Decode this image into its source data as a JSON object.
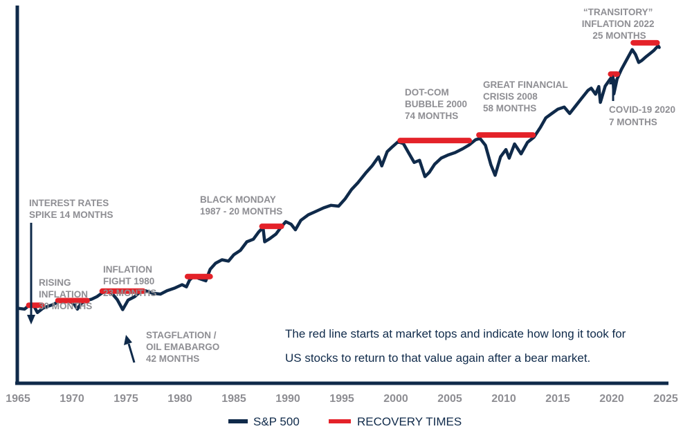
{
  "chart_data": {
    "type": "line",
    "title": "",
    "xlabel": "",
    "ylabel": "",
    "xlim": [
      1965,
      2025
    ],
    "y_scale": "index (log-like), unlabeled",
    "ylim": [
      0,
      100
    ],
    "grid": false,
    "x_ticks": [
      "1965",
      "1970",
      "1975",
      "1980",
      "1985",
      "1990",
      "1995",
      "2000",
      "2005",
      "2010",
      "2015",
      "2020",
      "2025"
    ],
    "legend": {
      "placement": "bottom-center",
      "entries": [
        {
          "label": "S&P 500",
          "color": "#0f2a4a"
        },
        {
          "label": "RECOVERY TIMES",
          "color": "#e42229"
        }
      ]
    },
    "series": [
      {
        "name": "S&P 500",
        "color": "#0f2a4a",
        "points": [
          [
            1965.0,
            14.0
          ],
          [
            1965.6,
            13.6
          ],
          [
            1966.0,
            15.2
          ],
          [
            1966.5,
            14.8
          ],
          [
            1966.8,
            12.0
          ],
          [
            1967.3,
            14.0
          ],
          [
            1967.7,
            14.8
          ],
          [
            1968.3,
            15.8
          ],
          [
            1968.8,
            17.4
          ],
          [
            1969.3,
            17.8
          ],
          [
            1969.8,
            17.2
          ],
          [
            1970.2,
            16.0
          ],
          [
            1970.5,
            13.6
          ],
          [
            1970.8,
            16.0
          ],
          [
            1971.3,
            17.6
          ],
          [
            1971.8,
            18.2
          ],
          [
            1972.3,
            19.4
          ],
          [
            1972.8,
            21.2
          ],
          [
            1973.3,
            22.2
          ],
          [
            1973.7,
            21.0
          ],
          [
            1974.2,
            18.0
          ],
          [
            1974.7,
            13.4
          ],
          [
            1975.2,
            17.8
          ],
          [
            1975.8,
            19.4
          ],
          [
            1976.3,
            21.6
          ],
          [
            1976.8,
            22.2
          ],
          [
            1977.5,
            21.0
          ],
          [
            1978.2,
            20.6
          ],
          [
            1978.8,
            22.2
          ],
          [
            1979.5,
            23.4
          ],
          [
            1980.2,
            25.0
          ],
          [
            1980.6,
            24.0
          ],
          [
            1980.9,
            27.2
          ],
          [
            1981.3,
            29.0
          ],
          [
            1981.8,
            27.8
          ],
          [
            1982.4,
            26.8
          ],
          [
            1982.8,
            32.2
          ],
          [
            1983.3,
            35.0
          ],
          [
            1983.9,
            36.6
          ],
          [
            1984.5,
            36.0
          ],
          [
            1985.0,
            39.0
          ],
          [
            1985.6,
            41.0
          ],
          [
            1986.2,
            45.0
          ],
          [
            1986.8,
            46.2
          ],
          [
            1987.3,
            49.6
          ],
          [
            1987.7,
            51.6
          ],
          [
            1987.85,
            45.0
          ],
          [
            1988.3,
            46.4
          ],
          [
            1988.9,
            48.6
          ],
          [
            1989.4,
            52.0
          ],
          [
            1989.8,
            54.4
          ],
          [
            1990.3,
            53.2
          ],
          [
            1990.7,
            50.6
          ],
          [
            1991.2,
            55.0
          ],
          [
            1991.9,
            57.6
          ],
          [
            1992.6,
            59.2
          ],
          [
            1993.3,
            60.8
          ],
          [
            1994.0,
            62.0
          ],
          [
            1994.7,
            61.6
          ],
          [
            1995.3,
            65.0
          ],
          [
            1995.9,
            69.4
          ],
          [
            1996.5,
            72.6
          ],
          [
            1997.2,
            77.0
          ],
          [
            1997.8,
            80.4
          ],
          [
            1998.4,
            84.6
          ],
          [
            1998.7,
            80.4
          ],
          [
            1999.2,
            87.0
          ],
          [
            1999.7,
            89.4
          ],
          [
            2000.2,
            91.6
          ],
          [
            2000.7,
            90.8
          ],
          [
            2001.2,
            86.4
          ],
          [
            2001.7,
            82.0
          ],
          [
            2002.2,
            83.0
          ],
          [
            2002.7,
            75.4
          ],
          [
            2003.1,
            77.4
          ],
          [
            2003.6,
            81.2
          ],
          [
            2004.2,
            84.0
          ],
          [
            2004.8,
            85.4
          ],
          [
            2005.5,
            86.6
          ],
          [
            2006.2,
            88.4
          ],
          [
            2006.8,
            90.2
          ],
          [
            2007.4,
            92.6
          ],
          [
            2007.8,
            93.2
          ],
          [
            2008.3,
            90.0
          ],
          [
            2008.8,
            81.0
          ],
          [
            2009.2,
            76.0
          ],
          [
            2009.7,
            84.6
          ],
          [
            2010.2,
            88.0
          ],
          [
            2010.5,
            84.0
          ],
          [
            2011.0,
            90.6
          ],
          [
            2011.6,
            86.0
          ],
          [
            2012.2,
            91.4
          ],
          [
            2012.8,
            93.8
          ],
          [
            2013.4,
            98.4
          ],
          [
            2013.9,
            102.8
          ],
          [
            2014.5,
            105.0
          ],
          [
            2015.0,
            106.8
          ],
          [
            2015.6,
            107.8
          ],
          [
            2016.1,
            104.8
          ],
          [
            2016.6,
            108.0
          ],
          [
            2017.2,
            111.8
          ],
          [
            2017.8,
            115.6
          ],
          [
            2018.1,
            116.6
          ],
          [
            2018.5,
            113.8
          ],
          [
            2018.8,
            117.4
          ],
          [
            2018.95,
            110.0
          ],
          [
            2019.4,
            117.6
          ],
          [
            2019.9,
            121.2
          ],
          [
            2020.1,
            122.4
          ],
          [
            2020.2,
            114.0
          ],
          [
            2020.5,
            121.0
          ],
          [
            2020.9,
            125.4
          ],
          [
            2021.4,
            130.0
          ],
          [
            2021.9,
            134.6
          ],
          [
            2022.2,
            132.4
          ],
          [
            2022.5,
            128.6
          ],
          [
            2022.8,
            129.6
          ],
          [
            2023.2,
            131.4
          ],
          [
            2023.6,
            133.0
          ],
          [
            2023.9,
            134.2
          ],
          [
            2024.3,
            136.4
          ],
          [
            2024.4,
            135.6
          ]
        ]
      }
    ],
    "recovery_times": [
      {
        "start": 1966.0,
        "end": 1967.2,
        "level": 15.4
      },
      {
        "start": 1968.7,
        "end": 1971.4,
        "level": 17.6
      },
      {
        "start": 1972.8,
        "end": 1976.6,
        "level": 22.0
      },
      {
        "start": 1980.7,
        "end": 1982.8,
        "level": 28.8
      },
      {
        "start": 1987.6,
        "end": 1989.4,
        "level": 52.2
      },
      {
        "start": 2000.4,
        "end": 2006.8,
        "level": 92.2
      },
      {
        "start": 2007.7,
        "end": 2012.7,
        "level": 94.8
      },
      {
        "start": 2019.9,
        "end": 2020.5,
        "level": 123.2
      },
      {
        "start": 2022.0,
        "end": 2024.2,
        "level": 137.8
      }
    ],
    "annotations": {
      "interest_rates": [
        "INTEREST RATES",
        "SPIKE 14 MONTHS"
      ],
      "rising_inflation": [
        "RISING",
        "INFLATION",
        "30 MONTHS"
      ],
      "inflation_fight": [
        "INFLATION",
        "FIGHT 1980",
        "23 MONTHS"
      ],
      "stagflation": [
        "STAGFLATION /",
        "OIL EMABARGO",
        "42 MONTHS"
      ],
      "black_monday": [
        "BLACK MONDAY",
        "1987 - 20 MONTHS"
      ],
      "dotcom": [
        "DOT-COM",
        "BUBBLE 2000",
        "74 MONTHS"
      ],
      "gfc": [
        "GREAT FINANCIAL",
        "CRISIS 2008",
        "58 MONTHS"
      ],
      "covid": [
        "COVID-19 2020",
        "7 MONTHS"
      ],
      "transitory": [
        "“TRANSITORY”",
        "INFLATION 2022",
        "25 MONTHS"
      ]
    },
    "note": [
      "The red line starts at market tops and indicate how long it took for",
      "US stocks to return to that value again after a bear market."
    ]
  }
}
